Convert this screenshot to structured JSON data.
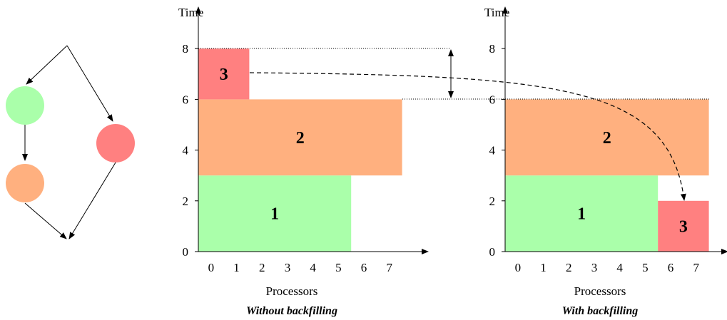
{
  "colors": {
    "job1": "#aaffaa",
    "job2": "#ffb07f",
    "job3": "#ff8080",
    "axis": "#000000"
  },
  "dag": {
    "nodes": [
      {
        "id": "1",
        "color_key": "job1"
      },
      {
        "id": "2",
        "color_key": "job2"
      },
      {
        "id": "3",
        "color_key": "job3"
      }
    ],
    "edges": [
      [
        "1",
        "2"
      ]
    ]
  },
  "charts": [
    {
      "id": "without",
      "ylabel": "Time",
      "xlabel": "Processors",
      "caption": "Without  backfilling",
      "x_ticks": [
        "0",
        "1",
        "2",
        "3",
        "4",
        "5",
        "6",
        "7"
      ],
      "y_ticks": [
        "0",
        "2",
        "4",
        "6",
        "8"
      ],
      "jobs": [
        {
          "label": "1",
          "color_key": "job1",
          "proc_start": 0,
          "proc_end": 6,
          "time_start": 0,
          "time_end": 3
        },
        {
          "label": "2",
          "color_key": "job2",
          "proc_start": 0,
          "proc_end": 8,
          "time_start": 3,
          "time_end": 6
        },
        {
          "label": "3",
          "color_key": "job3",
          "proc_start": 0,
          "proc_end": 2,
          "time_start": 6,
          "time_end": 8
        }
      ]
    },
    {
      "id": "with",
      "ylabel": "Time",
      "xlabel": "Processors",
      "caption": "With  backfilling",
      "x_ticks": [
        "0",
        "1",
        "2",
        "3",
        "4",
        "5",
        "6",
        "7"
      ],
      "y_ticks": [
        "0",
        "2",
        "4",
        "6",
        "8"
      ],
      "jobs": [
        {
          "label": "1",
          "color_key": "job1",
          "proc_start": 0,
          "proc_end": 6,
          "time_start": 0,
          "time_end": 3
        },
        {
          "label": "2",
          "color_key": "job2",
          "proc_start": 0,
          "proc_end": 8,
          "time_start": 3,
          "time_end": 6
        },
        {
          "label": "3",
          "color_key": "job3",
          "proc_start": 6,
          "proc_end": 8,
          "time_start": 0,
          "time_end": 2
        }
      ]
    }
  ]
}
